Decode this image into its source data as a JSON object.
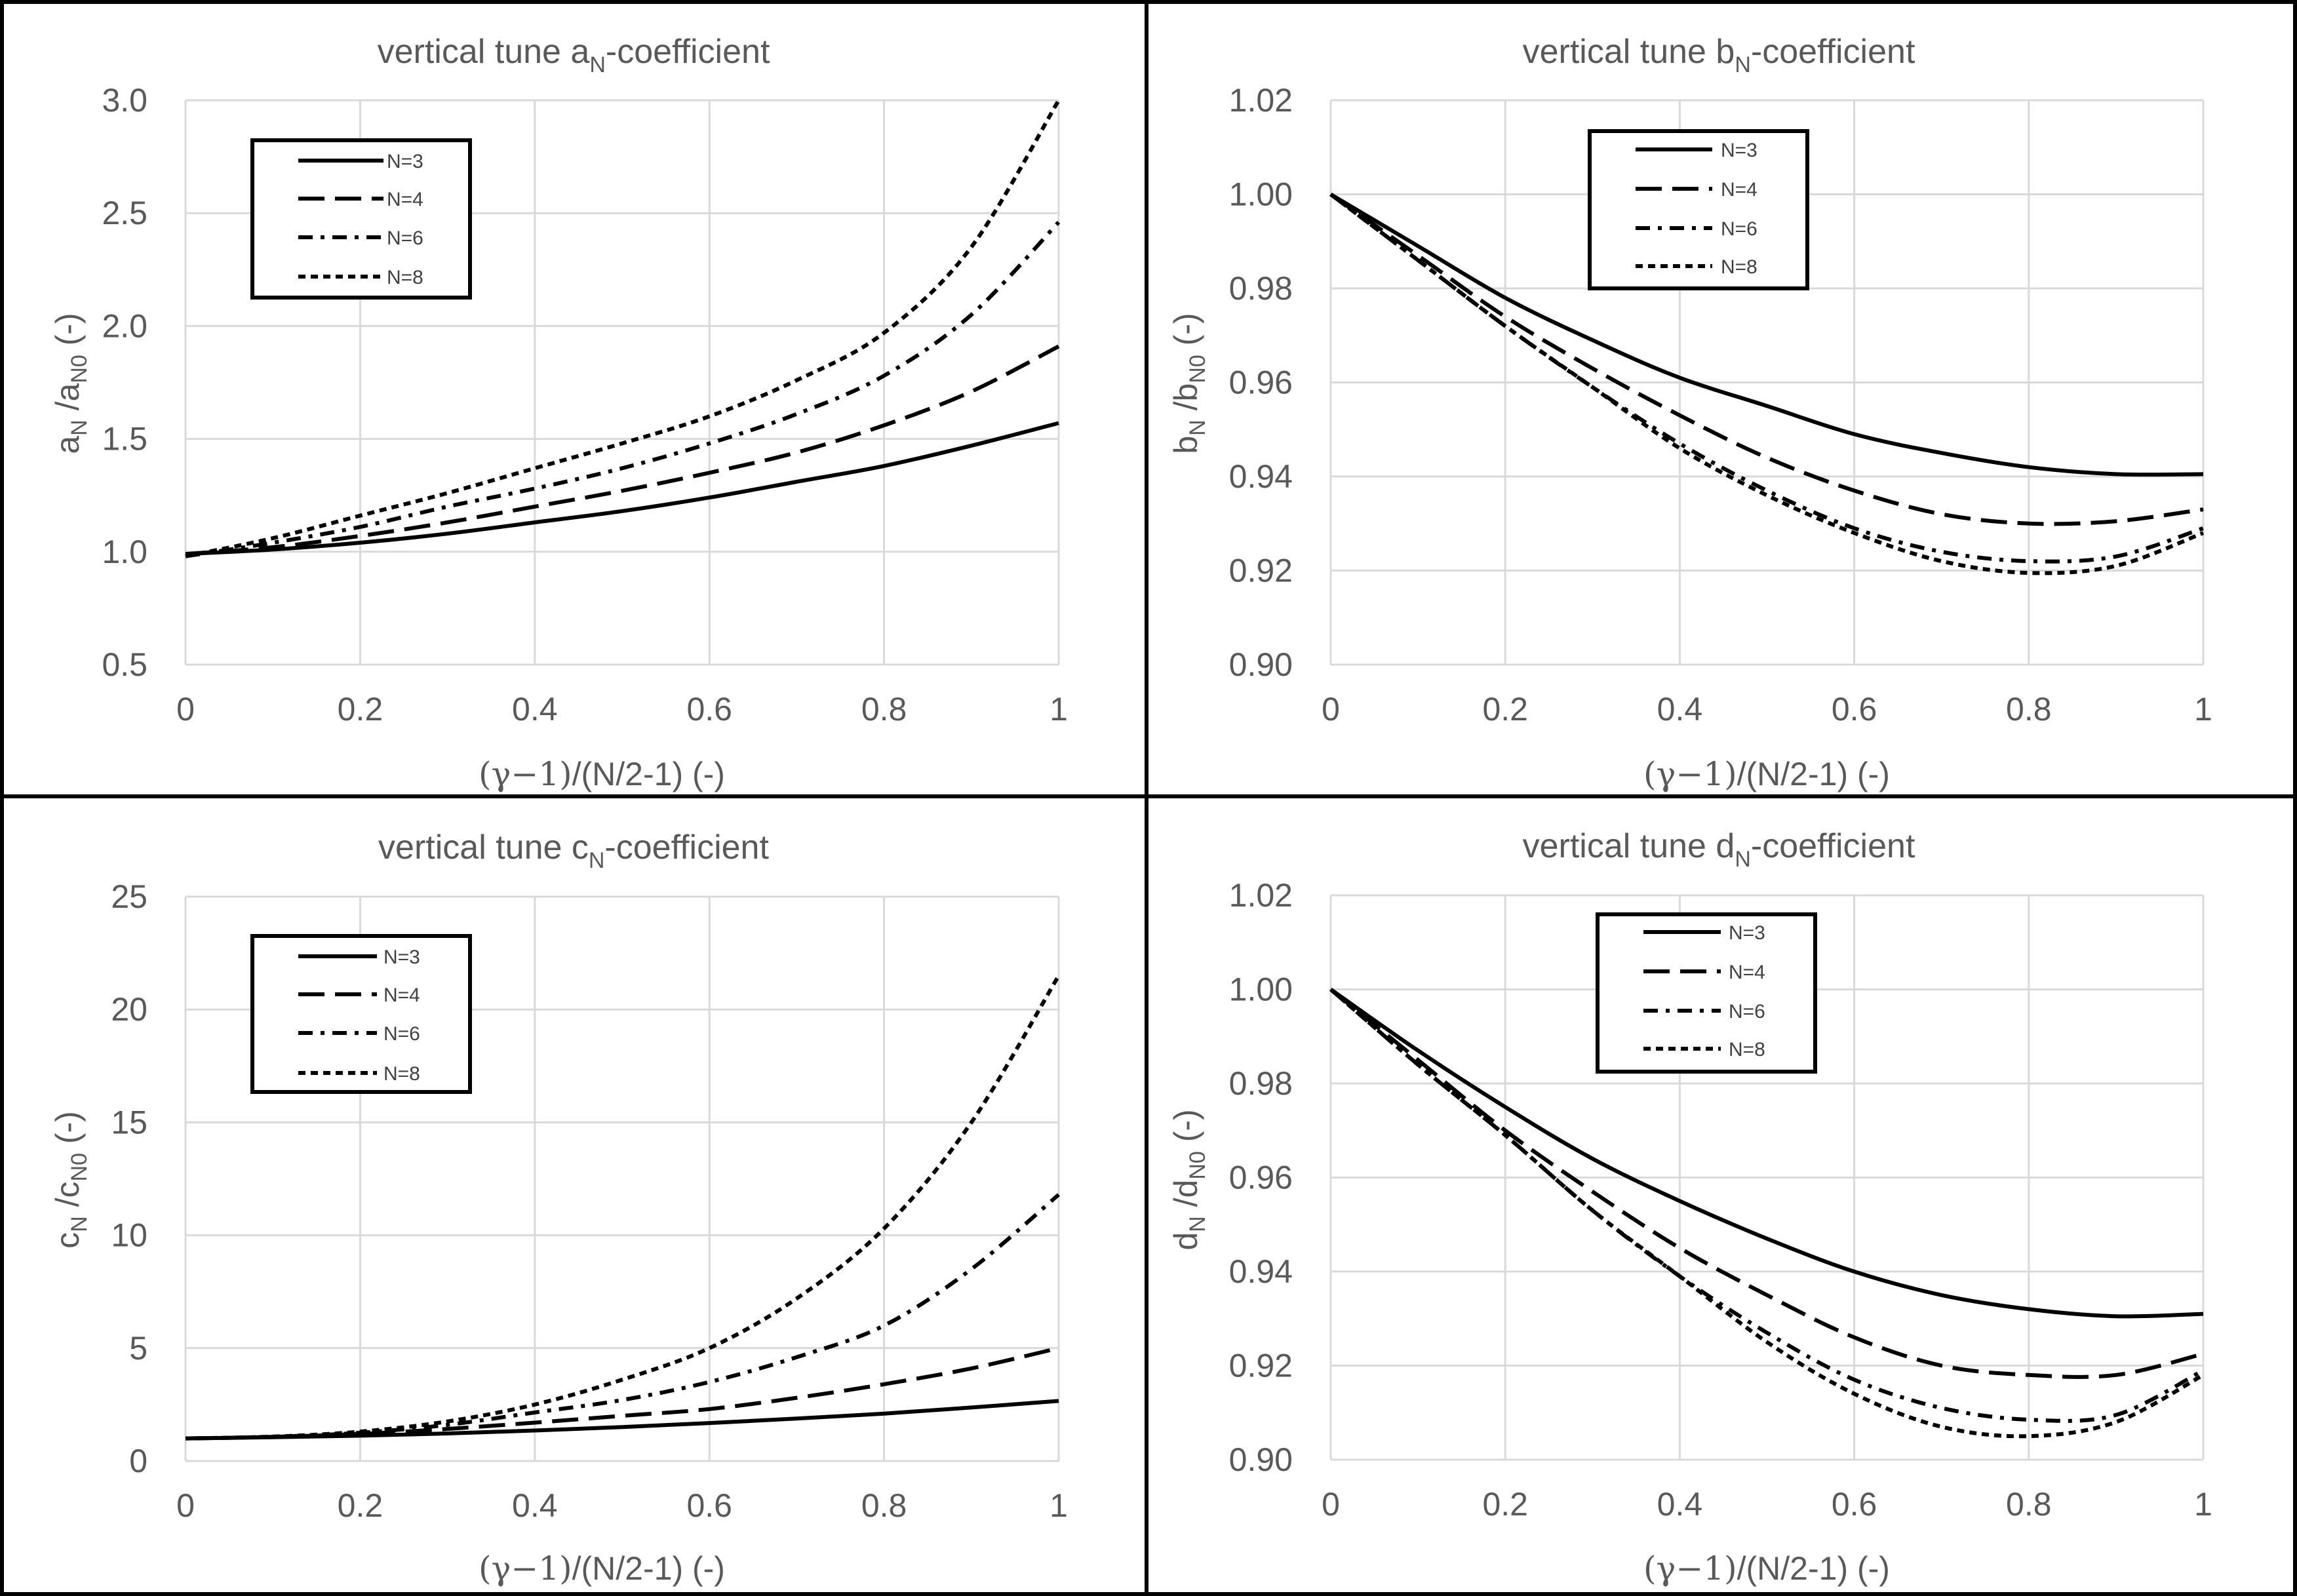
{
  "chart_data": [
    {
      "type": "line",
      "title": "vertical tune aN-coefficient",
      "title_parts": {
        "prefix": "vertical tune a",
        "sub": "N",
        "suffix": "-coefficient"
      },
      "xlabel": "(γ−1)/(N/2-1) (-)",
      "xlabel_parts": {
        "math": "(γ−1)",
        "rest": "/(N/2-1) (-)"
      },
      "ylabel": "aN /aN0 (-)",
      "ylabel_parts": {
        "v": "a",
        "s1": "N",
        "mid": " /a",
        "s2": "N0",
        "end": " (-)"
      },
      "xlim": [
        0,
        1
      ],
      "ylim": [
        0.5,
        3.0
      ],
      "x_ticks": [
        "0",
        "0.2",
        "0.4",
        "0.6",
        "0.8",
        "1"
      ],
      "y_ticks": [
        "0.5",
        "1.0",
        "1.5",
        "2.0",
        "2.5",
        "3.0"
      ],
      "legend_position": "top-left",
      "x": [
        0,
        0.1,
        0.2,
        0.3,
        0.4,
        0.5,
        0.6,
        0.7,
        0.8,
        0.9,
        1.0
      ],
      "series": [
        {
          "name": "N=3",
          "style": "solid",
          "values": [
            0.99,
            1.01,
            1.04,
            1.08,
            1.13,
            1.18,
            1.24,
            1.31,
            1.38,
            1.47,
            1.57
          ]
        },
        {
          "name": "N=4",
          "style": "long-dash",
          "values": [
            0.99,
            1.02,
            1.07,
            1.13,
            1.2,
            1.27,
            1.35,
            1.44,
            1.56,
            1.71,
            1.91
          ]
        },
        {
          "name": "N=6",
          "style": "dash-dot",
          "values": [
            0.98,
            1.04,
            1.11,
            1.2,
            1.28,
            1.37,
            1.48,
            1.61,
            1.78,
            2.05,
            2.46
          ]
        },
        {
          "name": "N=8",
          "style": "short-dash",
          "values": [
            0.98,
            1.06,
            1.16,
            1.26,
            1.37,
            1.48,
            1.6,
            1.76,
            1.97,
            2.35,
            3.0
          ]
        }
      ]
    },
    {
      "type": "line",
      "title": "vertical tune bN-coefficient",
      "title_parts": {
        "prefix": "vertical tune b",
        "sub": "N",
        "suffix": "-coefficient"
      },
      "xlabel": "(γ−1)/(N/2-1) (-)",
      "xlabel_parts": {
        "math": "(γ−1)",
        "rest": "/(N/2-1) (-)"
      },
      "ylabel": "bN /bN0 (-)",
      "ylabel_parts": {
        "v": "b",
        "s1": "N",
        "mid": " /b",
        "s2": "N0",
        "end": " (-)"
      },
      "xlim": [
        0,
        1
      ],
      "ylim": [
        0.9,
        1.02
      ],
      "x_ticks": [
        "0",
        "0.2",
        "0.4",
        "0.6",
        "0.8",
        "1"
      ],
      "y_ticks": [
        "0.90",
        "0.92",
        "0.94",
        "0.96",
        "0.98",
        "1.00",
        "1.02"
      ],
      "legend_position": "top-center",
      "x": [
        0,
        0.1,
        0.2,
        0.3,
        0.4,
        0.5,
        0.6,
        0.7,
        0.8,
        0.9,
        1.0
      ],
      "series": [
        {
          "name": "N=3",
          "style": "solid",
          "values": [
            1.0,
            0.989,
            0.978,
            0.969,
            0.961,
            0.955,
            0.949,
            0.945,
            0.942,
            0.9405,
            0.9405
          ]
        },
        {
          "name": "N=4",
          "style": "long-dash",
          "values": [
            1.0,
            0.987,
            0.974,
            0.963,
            0.953,
            0.944,
            0.937,
            0.932,
            0.93,
            0.9305,
            0.933
          ]
        },
        {
          "name": "N=6",
          "style": "dash-dot",
          "values": [
            1.0,
            0.986,
            0.972,
            0.959,
            0.947,
            0.937,
            0.929,
            0.924,
            0.922,
            0.923,
            0.929
          ]
        },
        {
          "name": "N=8",
          "style": "short-dash",
          "values": [
            1.0,
            0.986,
            0.972,
            0.959,
            0.946,
            0.936,
            0.928,
            0.922,
            0.9195,
            0.921,
            0.928
          ]
        }
      ]
    },
    {
      "type": "line",
      "title": "vertical tune cN-coefficient",
      "title_parts": {
        "prefix": "vertical tune c",
        "sub": "N",
        "suffix": "-coefficient"
      },
      "xlabel": "(γ−1)/(N/2-1) (-)",
      "xlabel_parts": {
        "math": "(γ−1)",
        "rest": "/(N/2-1) (-)"
      },
      "ylabel": "cN /cN0 (-)",
      "ylabel_parts": {
        "v": "c",
        "s1": "N",
        "mid": " /c",
        "s2": "N0",
        "end": " (-)"
      },
      "xlim": [
        0,
        1
      ],
      "ylim": [
        0,
        25
      ],
      "x_ticks": [
        "0",
        "0.2",
        "0.4",
        "0.6",
        "0.8",
        "1"
      ],
      "y_ticks": [
        "0",
        "5",
        "10",
        "15",
        "20",
        "25"
      ],
      "legend_position": "top-left",
      "x": [
        0,
        0.1,
        0.2,
        0.3,
        0.4,
        0.5,
        0.6,
        0.7,
        0.8,
        0.9,
        1.0
      ],
      "series": [
        {
          "name": "N=3",
          "style": "solid",
          "values": [
            1.0,
            1.05,
            1.12,
            1.22,
            1.35,
            1.5,
            1.68,
            1.88,
            2.1,
            2.37,
            2.66
          ]
        },
        {
          "name": "N=4",
          "style": "long-dash",
          "values": [
            1.0,
            1.07,
            1.2,
            1.42,
            1.7,
            2.0,
            2.3,
            2.8,
            3.4,
            4.1,
            5.0
          ]
        },
        {
          "name": "N=6",
          "style": "dash-dot",
          "values": [
            1.0,
            1.07,
            1.25,
            1.6,
            2.15,
            2.7,
            3.5,
            4.6,
            6.0,
            8.5,
            11.8
          ]
        },
        {
          "name": "N=8",
          "style": "short-dash",
          "values": [
            1.0,
            1.08,
            1.3,
            1.75,
            2.5,
            3.6,
            5.0,
            7.2,
            10.3,
            15.0,
            21.5
          ]
        }
      ]
    },
    {
      "type": "line",
      "title": "vertical tune dN-coefficient",
      "title_parts": {
        "prefix": "vertical tune d",
        "sub": "N",
        "suffix": "-coefficient"
      },
      "xlabel": "(γ−1)/(N/2-1) (-)",
      "xlabel_parts": {
        "math": "(γ−1)",
        "rest": "/(N/2-1) (-)"
      },
      "ylabel": "dN /dN0 (-)",
      "ylabel_parts": {
        "v": "d",
        "s1": "N",
        "mid": " /d",
        "s2": "N0",
        "end": " (-)"
      },
      "xlim": [
        0,
        1
      ],
      "ylim": [
        0.9,
        1.02
      ],
      "x_ticks": [
        "0",
        "0.2",
        "0.4",
        "0.6",
        "0.8",
        "1"
      ],
      "y_ticks": [
        "0.90",
        "0.92",
        "0.94",
        "0.96",
        "0.98",
        "1.00",
        "1.02"
      ],
      "legend_position": "top-center",
      "x": [
        0,
        0.1,
        0.2,
        0.3,
        0.4,
        0.5,
        0.6,
        0.7,
        0.8,
        0.9,
        1.0
      ],
      "series": [
        {
          "name": "N=3",
          "style": "solid",
          "values": [
            1.0,
            0.987,
            0.975,
            0.964,
            0.955,
            0.947,
            0.94,
            0.935,
            0.932,
            0.9305,
            0.931
          ]
        },
        {
          "name": "N=4",
          "style": "long-dash",
          "values": [
            1.0,
            0.985,
            0.97,
            0.957,
            0.945,
            0.935,
            0.926,
            0.92,
            0.918,
            0.918,
            0.9225
          ]
        },
        {
          "name": "N=6",
          "style": "dash-dot",
          "values": [
            1.0,
            0.984,
            0.969,
            0.953,
            0.939,
            0.927,
            0.917,
            0.911,
            0.9085,
            0.9095,
            0.919
          ]
        },
        {
          "name": "N=8",
          "style": "short-dash",
          "values": [
            1.0,
            0.984,
            0.969,
            0.953,
            0.939,
            0.925,
            0.914,
            0.907,
            0.905,
            0.908,
            0.918
          ]
        }
      ]
    }
  ]
}
